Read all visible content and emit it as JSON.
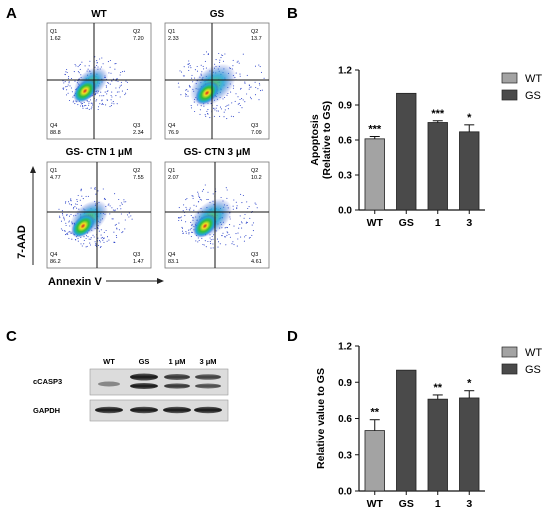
{
  "panels": {
    "A": {
      "letter": "A",
      "plots": [
        {
          "title": "WT",
          "q": [
            "Q1",
            "1.62",
            "Q2",
            "7.20",
            "Q4",
            "88.8",
            "Q3",
            "2.34"
          ]
        },
        {
          "title": "GS",
          "q": [
            "Q1",
            "2.33",
            "Q2",
            "13.7",
            "Q4",
            "76.9",
            "Q3",
            "7.09"
          ]
        },
        {
          "title": "GS- CTN 1 μM",
          "q": [
            "Q1",
            "4.77",
            "Q2",
            "7.55",
            "Q4",
            "86.2",
            "Q3",
            "1.47"
          ]
        },
        {
          "title": "GS- CTN 3 μM",
          "q": [
            "Q1",
            "2.07",
            "Q2",
            "10.2",
            "Q4",
            "83.1",
            "Q3",
            "4.61"
          ]
        }
      ],
      "y_axis_label": "7-AAD",
      "x_axis_label": "Annexin V"
    },
    "B": {
      "letter": "B"
    },
    "C": {
      "letter": "C",
      "lanes": [
        "WT",
        "GS",
        "1 μM",
        "3 μM"
      ],
      "rows": [
        "cCASP3",
        "GAPDH"
      ]
    },
    "D": {
      "letter": "D"
    }
  },
  "chart_data": [
    {
      "type": "bar",
      "panel": "B",
      "categories": [
        "WT",
        "GS",
        "1",
        "3"
      ],
      "values": [
        0.61,
        1.0,
        0.75,
        0.67
      ],
      "errors": [
        0.02,
        0.0,
        0.015,
        0.06
      ],
      "significance": [
        "***",
        "",
        "***",
        "*"
      ],
      "bar_colors": [
        "#a3a3a3",
        "#4a4a4a",
        "#4a4a4a",
        "#4a4a4a"
      ],
      "ylabel": "Apoptosis\n(Relative to GS)",
      "ylim": [
        0.0,
        1.2
      ],
      "yticks": [
        "0.0",
        "0.3",
        "0.6",
        "0.9",
        "1.2"
      ],
      "legend": [
        {
          "name": "WT",
          "color": "#a3a3a3"
        },
        {
          "name": "GS",
          "color": "#4a4a4a"
        }
      ],
      "legend_position": "top-right"
    },
    {
      "type": "bar",
      "panel": "D",
      "categories": [
        "WT",
        "GS",
        "1",
        "3"
      ],
      "values": [
        0.5,
        1.0,
        0.76,
        0.77
      ],
      "errors": [
        0.09,
        0.0,
        0.035,
        0.06
      ],
      "significance": [
        "**",
        "",
        "**",
        "*"
      ],
      "bar_colors": [
        "#a3a3a3",
        "#4a4a4a",
        "#4a4a4a",
        "#4a4a4a"
      ],
      "ylabel": "Relative value to GS",
      "ylim": [
        0.0,
        1.2
      ],
      "yticks": [
        "0.0",
        "0.3",
        "0.6",
        "0.9",
        "1.2"
      ],
      "legend": [
        {
          "name": "WT",
          "color": "#a3a3a3"
        },
        {
          "name": "GS",
          "color": "#4a4a4a"
        }
      ],
      "legend_position": "top-right"
    }
  ]
}
